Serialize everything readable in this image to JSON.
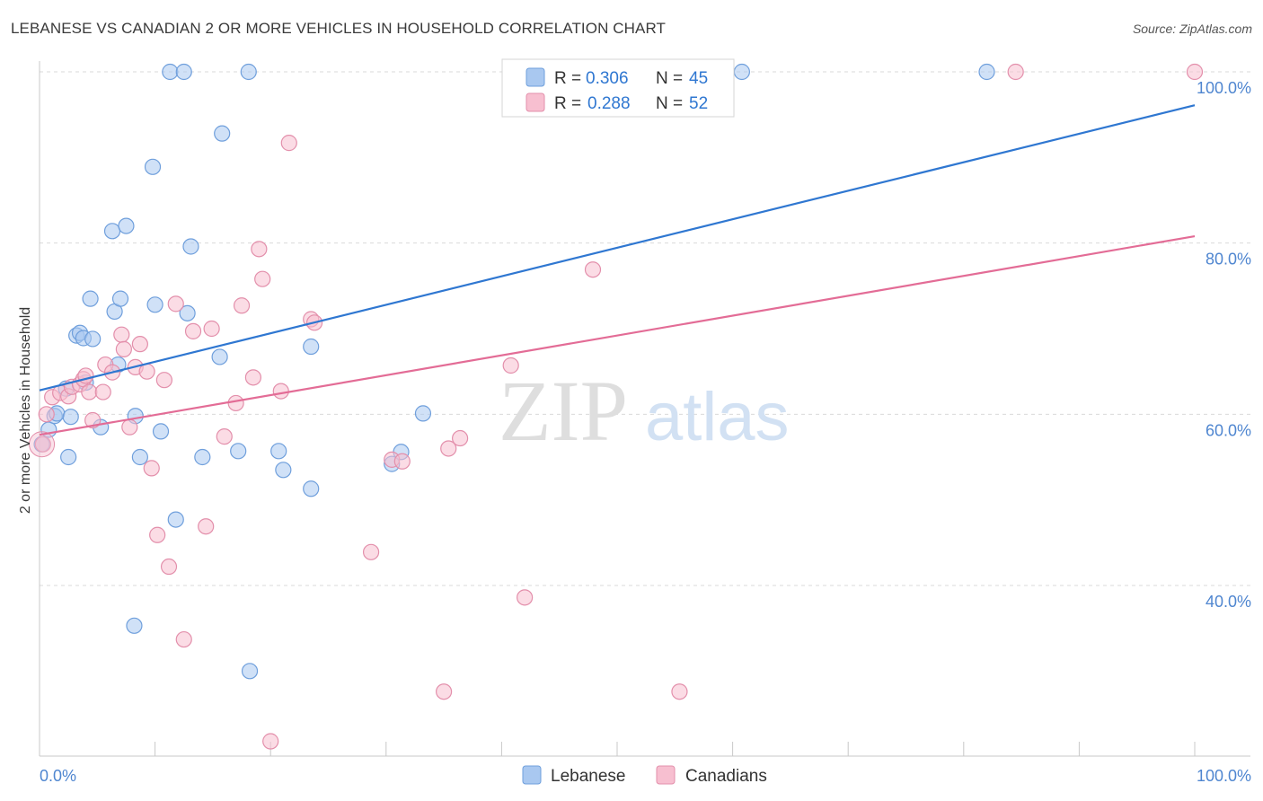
{
  "title": "LEBANESE VS CANADIAN 2 OR MORE VEHICLES IN HOUSEHOLD CORRELATION CHART",
  "source": "Source: ZipAtlas.com",
  "watermark": {
    "zip": "ZIP",
    "atlas": "atlas"
  },
  "colors": {
    "lebanese_fill": "#a9c8f0",
    "lebanese_stroke": "#6f9fdc",
    "lebanese_line": "#2f77d1",
    "canadians_fill": "#f7bfd0",
    "canadians_stroke": "#e38fab",
    "canadians_line": "#e36c96",
    "tick_label": "#4f86d0",
    "grid": "#d9d9d9"
  },
  "legend_top": {
    "rows": [
      {
        "r_label": "R = ",
        "r_value": "0.306",
        "n_label": "N = ",
        "n_value": "45"
      },
      {
        "r_label": "R = ",
        "r_value": "0.288",
        "n_label": "N = ",
        "n_value": "52"
      }
    ]
  },
  "chart_data": {
    "type": "scatter",
    "title": "LEBANESE VS CANADIAN 2 OR MORE VEHICLES IN HOUSEHOLD CORRELATION CHART",
    "xlabel": "",
    "ylabel": "2 or more Vehicles in Household",
    "xlim": [
      0,
      100
    ],
    "ylim": [
      18,
      102
    ],
    "x_tick_labels": [
      {
        "value": 0,
        "label": "0.0%"
      },
      {
        "value": 100,
        "label": "100.0%"
      }
    ],
    "y_tick_labels": [
      {
        "value": 40,
        "label": "40.0%"
      },
      {
        "value": 60,
        "label": "60.0%"
      },
      {
        "value": 80,
        "label": "80.0%"
      },
      {
        "value": 100,
        "label": "100.0%"
      }
    ],
    "grid": true,
    "legend_position": "bottom",
    "series": [
      {
        "name": "Lebanese",
        "trend": {
          "x": [
            0,
            100
          ],
          "y": [
            62.8,
            96.1
          ]
        },
        "points": [
          [
            0.2,
            56.5
          ],
          [
            0.8,
            58.2
          ],
          [
            1.3,
            59.8
          ],
          [
            1.5,
            60.1
          ],
          [
            2.3,
            63.0
          ],
          [
            2.5,
            55.0
          ],
          [
            2.7,
            59.7
          ],
          [
            3.2,
            69.2
          ],
          [
            3.5,
            69.5
          ],
          [
            3.8,
            68.9
          ],
          [
            4.0,
            63.7
          ],
          [
            4.4,
            73.5
          ],
          [
            4.6,
            68.8
          ],
          [
            5.3,
            58.5
          ],
          [
            6.3,
            81.4
          ],
          [
            6.5,
            72.0
          ],
          [
            6.8,
            65.8
          ],
          [
            7.0,
            73.5
          ],
          [
            7.5,
            82.0
          ],
          [
            8.3,
            59.8
          ],
          [
            8.7,
            55.0
          ],
          [
            9.8,
            88.9
          ],
          [
            10.0,
            72.8
          ],
          [
            10.5,
            58.0
          ],
          [
            11.3,
            100.0
          ],
          [
            12.5,
            100.0
          ],
          [
            12.8,
            71.8
          ],
          [
            11.8,
            47.7
          ],
          [
            13.1,
            79.6
          ],
          [
            14.1,
            55.0
          ],
          [
            15.6,
            66.7
          ],
          [
            15.8,
            92.8
          ],
          [
            17.2,
            55.7
          ],
          [
            18.1,
            100.0
          ],
          [
            18.2,
            30.0
          ],
          [
            20.7,
            55.7
          ],
          [
            21.1,
            53.5
          ],
          [
            23.5,
            51.3
          ],
          [
            23.5,
            67.9
          ],
          [
            8.2,
            35.3
          ],
          [
            30.5,
            54.2
          ],
          [
            31.3,
            55.6
          ],
          [
            33.2,
            60.1
          ],
          [
            60.8,
            100.0
          ],
          [
            82.0,
            100.0
          ]
        ]
      },
      {
        "name": "Canadians",
        "trend": {
          "x": [
            0,
            100
          ],
          "y": [
            57.6,
            80.8
          ]
        },
        "points": [
          [
            0.3,
            56.5
          ],
          [
            0.6,
            60.0
          ],
          [
            1.1,
            62.0
          ],
          [
            1.8,
            62.5
          ],
          [
            2.5,
            62.1
          ],
          [
            2.8,
            63.2
          ],
          [
            3.5,
            63.5
          ],
          [
            3.8,
            64.1
          ],
          [
            4.0,
            64.5
          ],
          [
            4.3,
            62.6
          ],
          [
            4.6,
            59.3
          ],
          [
            5.5,
            62.6
          ],
          [
            5.7,
            65.8
          ],
          [
            6.3,
            64.9
          ],
          [
            7.1,
            69.3
          ],
          [
            7.3,
            67.6
          ],
          [
            7.8,
            58.5
          ],
          [
            8.3,
            65.5
          ],
          [
            8.7,
            68.2
          ],
          [
            9.3,
            65.0
          ],
          [
            9.7,
            53.7
          ],
          [
            10.2,
            45.9
          ],
          [
            10.8,
            64.0
          ],
          [
            11.2,
            42.2
          ],
          [
            11.8,
            72.9
          ],
          [
            12.5,
            33.7
          ],
          [
            13.3,
            69.7
          ],
          [
            14.4,
            46.9
          ],
          [
            14.9,
            70.0
          ],
          [
            16.0,
            57.4
          ],
          [
            17.0,
            61.3
          ],
          [
            17.5,
            72.7
          ],
          [
            18.5,
            64.3
          ],
          [
            19.0,
            79.3
          ],
          [
            19.3,
            75.8
          ],
          [
            20.0,
            21.8
          ],
          [
            20.9,
            62.7
          ],
          [
            21.6,
            91.7
          ],
          [
            23.5,
            71.1
          ],
          [
            23.8,
            70.7
          ],
          [
            28.7,
            43.9
          ],
          [
            30.5,
            54.7
          ],
          [
            31.4,
            54.5
          ],
          [
            35.0,
            27.6
          ],
          [
            35.4,
            56.0
          ],
          [
            36.4,
            57.2
          ],
          [
            40.8,
            65.7
          ],
          [
            42.0,
            38.6
          ],
          [
            47.9,
            76.9
          ],
          [
            55.4,
            27.6
          ],
          [
            84.5,
            100.0
          ],
          [
            100.0,
            100.0
          ]
        ]
      }
    ]
  },
  "legend_bottom": [
    {
      "label": "Lebanese"
    },
    {
      "label": "Canadians"
    }
  ]
}
